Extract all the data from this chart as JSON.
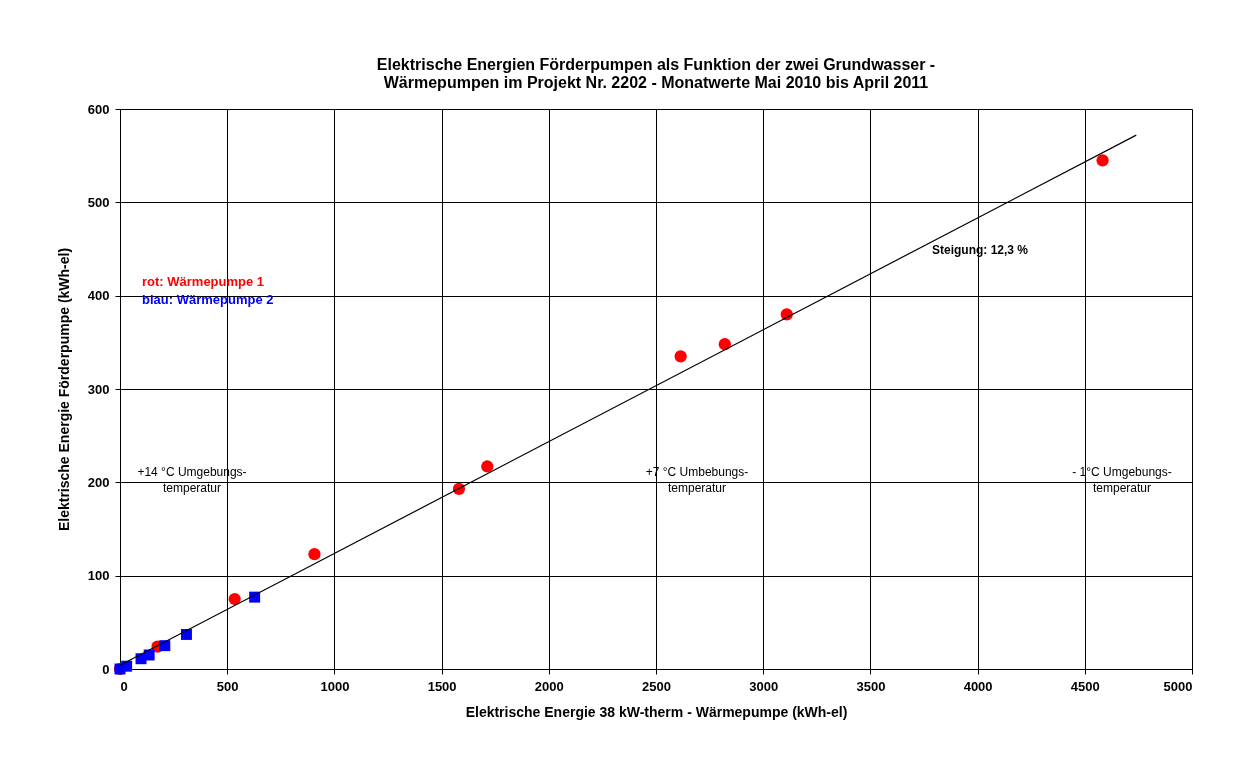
{
  "chart_data": {
    "type": "scatter",
    "title": "Elektrische Energien Förderpumpen als Funktion der zwei Grundwasser -\nWärmepumpen im Projekt Nr. 2202  -  Monatwerte Mai 2010 bis April 2011",
    "xlabel": "Elektrische Energie 38 kW-therm - Wärmepumpe  (kWh-el)",
    "ylabel": "Elektrische Energie Förderpumpe  (kWh-el)",
    "xlim": [
      0,
      5000
    ],
    "xticks": [
      0,
      500,
      1000,
      1500,
      2000,
      2500,
      3000,
      3500,
      4000,
      4500,
      5000
    ],
    "ylim": [
      0,
      600
    ],
    "yticks": [
      0,
      100,
      200,
      300,
      400,
      500,
      600
    ],
    "grid": true,
    "legend": "top left",
    "series": [
      {
        "name": "rot:    Wärmepumpe 1",
        "color": "#ff0000",
        "marker": "circle",
        "x": [
          0,
          175,
          535,
          907,
          1581,
          1713,
          2615,
          2821,
          3110,
          4583
        ],
        "values": [
          0,
          24,
          75,
          123,
          193,
          217,
          335,
          348,
          380,
          545
        ]
      },
      {
        "name": "blau: Wärmepumpe 2",
        "color": "#0000ff",
        "marker": "square",
        "x": [
          0,
          31,
          98,
          136,
          209,
          310,
          628
        ],
        "values": [
          0,
          3,
          11,
          15,
          25,
          37,
          77
        ]
      },
      {
        "type": "line",
        "color": "#000000",
        "marker": "none",
        "x": [
          0,
          4740
        ],
        "values": [
          4,
          572
        ]
      }
    ],
    "annotations": [
      "Steigung:  12,3 %",
      "+14 °C Umgebungs-\ntemperatur",
      "+7 °C Umbebungs-\ntemperatur",
      "- 1°C Umgebungs-\ntemperatur"
    ]
  }
}
